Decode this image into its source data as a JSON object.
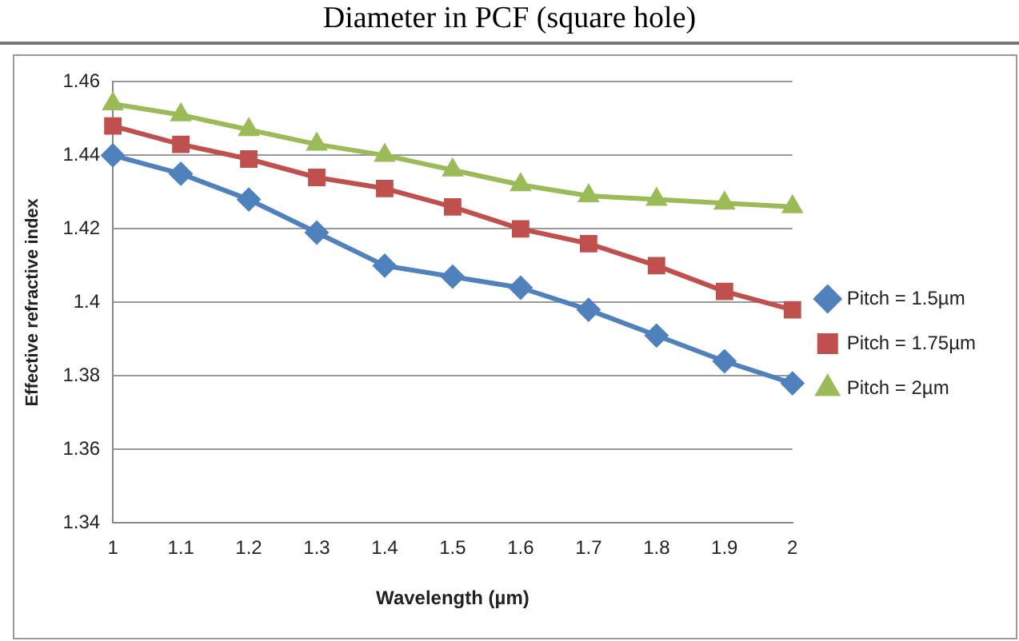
{
  "chart_data": {
    "type": "line",
    "title": "Diameter in PCF (square hole)",
    "xlabel": "Wavelength (µm)",
    "ylabel": "Effective refractive index",
    "categories": [
      "1",
      "1.1",
      "1.2",
      "1.3",
      "1.4",
      "1.5",
      "1.6",
      "1.7",
      "1.8",
      "1.9",
      "2"
    ],
    "series": [
      {
        "name": "Pitch = 1.5µm",
        "color": "#4f81bd",
        "marker": "diamond",
        "values": [
          1.44,
          1.435,
          1.428,
          1.419,
          1.41,
          1.407,
          1.404,
          1.398,
          1.391,
          1.384,
          1.378
        ]
      },
      {
        "name": "Pitch = 1.75µm",
        "color": "#c0504d",
        "marker": "square",
        "values": [
          1.448,
          1.443,
          1.439,
          1.434,
          1.431,
          1.426,
          1.42,
          1.416,
          1.41,
          1.403,
          1.398
        ]
      },
      {
        "name": "Pitch = 2µm",
        "color": "#9bbb59",
        "marker": "triangle",
        "values": [
          1.454,
          1.451,
          1.447,
          1.443,
          1.44,
          1.436,
          1.432,
          1.429,
          1.428,
          1.427,
          1.426
        ]
      }
    ],
    "ylim": [
      1.34,
      1.46
    ],
    "yticks": [
      1.34,
      1.36,
      1.38,
      1.4,
      1.42,
      1.44,
      1.46
    ],
    "grid": "y",
    "legend": "right",
    "line_style": "solid"
  }
}
